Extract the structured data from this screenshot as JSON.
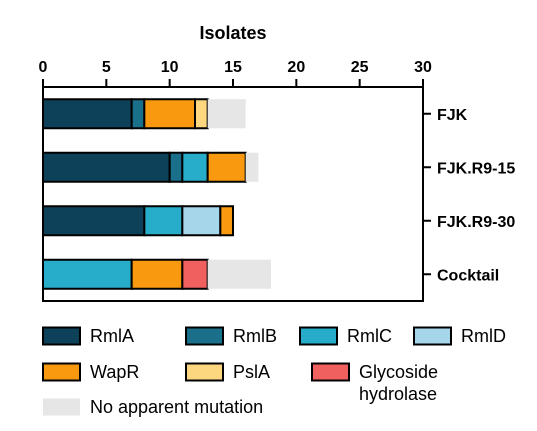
{
  "chart_data": {
    "type": "bar",
    "orientation": "horizontal",
    "stacked": true,
    "title": "",
    "xlabel": "Isolates",
    "ylabel": "",
    "xlim": [
      0,
      30
    ],
    "x_ticks": [
      0,
      5,
      10,
      15,
      20,
      25,
      30
    ],
    "x_axis_position": "top",
    "category_axis_position": "right",
    "grid": false,
    "legend_position": "bottom",
    "categories": [
      "FJK",
      "FJK.R9-15",
      "FJK.R9-30",
      "Cocktail"
    ],
    "series": [
      {
        "name": "RmlA",
        "color": "#0d4159",
        "values": [
          7,
          10,
          8,
          0
        ]
      },
      {
        "name": "RmlB",
        "color": "#1a6f8a",
        "values": [
          1,
          1,
          0,
          0
        ]
      },
      {
        "name": "RmlC",
        "color": "#27adc9",
        "values": [
          0,
          2,
          3,
          7
        ]
      },
      {
        "name": "RmlD",
        "color": "#a6d6ea",
        "values": [
          0,
          0,
          3,
          0
        ]
      },
      {
        "name": "WapR",
        "color": "#f9990f",
        "values": [
          4,
          3,
          1,
          4
        ]
      },
      {
        "name": "PslA",
        "color": "#fdd77f",
        "values": [
          1,
          0,
          0,
          0
        ]
      },
      {
        "name": "Glycoside hydrolase",
        "color": "#f0605f",
        "values": [
          0,
          0,
          0,
          2
        ]
      },
      {
        "name": "No apparent mutation",
        "color": "#e6e6e6",
        "values": [
          3,
          1,
          0,
          5
        ]
      }
    ]
  }
}
